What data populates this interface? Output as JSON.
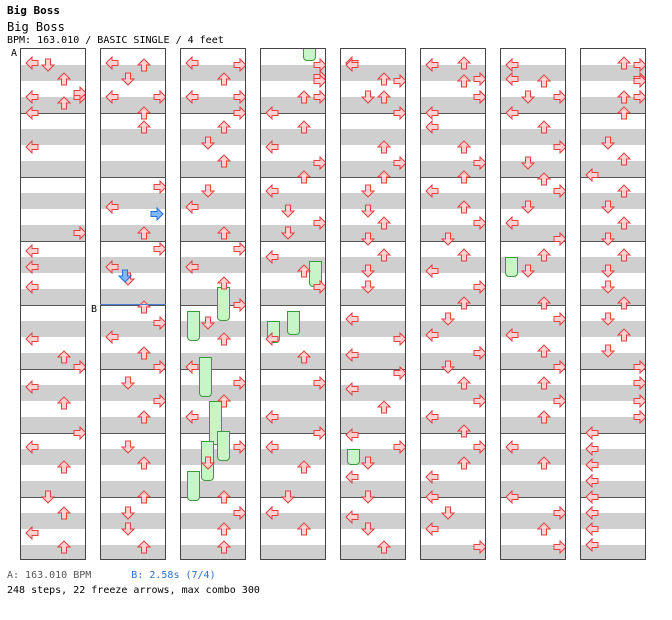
{
  "header": {
    "title": "Big Boss",
    "subtitle": "Big Boss",
    "info": "BPM: 163.010 / BASIC SINGLE / 4 feet"
  },
  "markers": {
    "a": "A",
    "b": "B"
  },
  "footer": {
    "bpm_a": "A: 163.010 BPM",
    "bpm_b": "B: 2.58s (7/4)",
    "stats": "248 steps, 22 freeze arrows, max combo 300"
  },
  "colors": {
    "normal_arrow": "#ffd0d0",
    "normal_arrow_stroke": "#e04040",
    "shock_arrow": "#7fb8ff",
    "freeze": "#c8f5c8",
    "stripe": "#cfcfcf"
  },
  "columns": [
    {
      "arrows": [
        [
          "L",
          6
        ],
        [
          "U",
          22
        ],
        [
          "R",
          40
        ],
        [
          "U",
          46
        ],
        [
          "L",
          56
        ],
        [
          "L",
          90
        ],
        [
          "R",
          176
        ],
        [
          "L",
          194
        ],
        [
          "L",
          210
        ],
        [
          "L",
          230
        ],
        [
          "L",
          282
        ],
        [
          "U",
          300
        ],
        [
          "R",
          310
        ],
        [
          "L",
          330
        ],
        [
          "U",
          346
        ],
        [
          "R",
          376
        ],
        [
          "L",
          390
        ],
        [
          "U",
          410
        ],
        [
          "D",
          440
        ],
        [
          "U",
          456
        ],
        [
          "L",
          476
        ],
        [
          "U",
          490
        ],
        [
          "D",
          520
        ],
        [
          "R",
          548
        ],
        [
          "L",
          552
        ]
      ],
      "holds": []
    },
    {
      "arrows": [
        [
          "L",
          6
        ],
        [
          "D",
          22
        ],
        [
          "L",
          40
        ],
        [
          "U",
          56
        ],
        [
          "U",
          70
        ],
        [
          "R",
          130
        ],
        [
          "L",
          150
        ],
        [
          "U",
          176
        ],
        [
          "R",
          192
        ],
        [
          "L",
          210
        ],
        [
          "D",
          222
        ],
        [
          "U",
          250
        ],
        [
          "R",
          266
        ],
        [
          "L",
          280
        ],
        [
          "U",
          296
        ],
        [
          "R",
          310
        ],
        [
          "D",
          326
        ],
        [
          "R",
          344
        ],
        [
          "U",
          360
        ],
        [
          "D",
          390
        ],
        [
          "U",
          406
        ],
        [
          "U",
          440
        ],
        [
          "D",
          456
        ],
        [
          "D",
          472
        ],
        [
          "U",
          490
        ],
        [
          "U",
          520
        ],
        [
          "R",
          552
        ]
      ],
      "holds": []
    },
    {
      "arrows": [
        [
          "L",
          6
        ],
        [
          "U",
          22
        ],
        [
          "L",
          40
        ],
        [
          "R",
          56
        ],
        [
          "U",
          70
        ],
        [
          "D",
          86
        ],
        [
          "U",
          104
        ],
        [
          "D",
          134
        ],
        [
          "L",
          150
        ],
        [
          "U",
          176
        ],
        [
          "R",
          192
        ],
        [
          "L",
          210
        ],
        [
          "U",
          226
        ],
        [
          "R",
          248
        ],
        [
          "D",
          266
        ],
        [
          "U",
          282
        ],
        [
          "L",
          310
        ],
        [
          "R",
          326
        ],
        [
          "U",
          344
        ],
        [
          "L",
          360
        ],
        [
          "R",
          390
        ],
        [
          "D",
          406
        ],
        [
          "U",
          440
        ],
        [
          "R",
          456
        ],
        [
          "U",
          472
        ],
        [
          "U",
          490
        ],
        [
          "R",
          520
        ],
        [
          "R",
          552
        ]
      ],
      "holds": [
        [
          6,
          310,
          30
        ],
        [
          36,
          286,
          34
        ],
        [
          18,
          356,
          40
        ],
        [
          28,
          400,
          44
        ],
        [
          6,
          470,
          30
        ],
        [
          20,
          440,
          40
        ],
        [
          36,
          430,
          30
        ]
      ]
    },
    {
      "arrows": [
        [
          "R",
          20
        ],
        [
          "U",
          40
        ],
        [
          "L",
          56
        ],
        [
          "U",
          70
        ],
        [
          "L",
          90
        ],
        [
          "R",
          106
        ],
        [
          "U",
          120
        ],
        [
          "L",
          134
        ],
        [
          "D",
          154
        ],
        [
          "R",
          166
        ],
        [
          "D",
          176
        ],
        [
          "L",
          200
        ],
        [
          "U",
          214
        ],
        [
          "R",
          230
        ],
        [
          "L",
          282
        ],
        [
          "U",
          300
        ],
        [
          "R",
          326
        ],
        [
          "L",
          360
        ],
        [
          "R",
          376
        ],
        [
          "L",
          390
        ],
        [
          "U",
          410
        ],
        [
          "D",
          440
        ],
        [
          "L",
          456
        ],
        [
          "U",
          472
        ],
        [
          "R",
          520
        ],
        [
          "R",
          536
        ],
        [
          "R",
          552
        ]
      ],
      "holds": [
        [
          42,
          46,
          14
        ],
        [
          26,
          310,
          24
        ],
        [
          48,
          260,
          26
        ],
        [
          6,
          320,
          22
        ]
      ]
    },
    {
      "arrows": [
        [
          "L",
          6
        ],
        [
          "U",
          22
        ],
        [
          "U",
          40
        ],
        [
          "R",
          56
        ],
        [
          "U",
          90
        ],
        [
          "R",
          106
        ],
        [
          "U",
          120
        ],
        [
          "D",
          134
        ],
        [
          "D",
          154
        ],
        [
          "U",
          166
        ],
        [
          "D",
          182
        ],
        [
          "U",
          198
        ],
        [
          "D",
          214
        ],
        [
          "D",
          230
        ],
        [
          "L",
          262
        ],
        [
          "R",
          282
        ],
        [
          "L",
          298
        ],
        [
          "R",
          316
        ],
        [
          "L",
          332
        ],
        [
          "U",
          350
        ],
        [
          "L",
          378
        ],
        [
          "R",
          390
        ],
        [
          "D",
          406
        ],
        [
          "L",
          420
        ],
        [
          "D",
          440
        ],
        [
          "L",
          460
        ],
        [
          "D",
          472
        ],
        [
          "U",
          490
        ],
        [
          "L",
          520
        ],
        [
          "R",
          536
        ],
        [
          "D",
          552
        ]
      ],
      "holds": [
        [
          6,
          448,
          16
        ]
      ]
    },
    {
      "arrows": [
        [
          "U",
          6
        ],
        [
          "R",
          22
        ],
        [
          "R",
          40
        ],
        [
          "L",
          56
        ],
        [
          "L",
          70
        ],
        [
          "U",
          90
        ],
        [
          "R",
          106
        ],
        [
          "U",
          120
        ],
        [
          "L",
          134
        ],
        [
          "U",
          150
        ],
        [
          "R",
          166
        ],
        [
          "D",
          182
        ],
        [
          "U",
          198
        ],
        [
          "L",
          214
        ],
        [
          "R",
          230
        ],
        [
          "U",
          246
        ],
        [
          "D",
          262
        ],
        [
          "L",
          278
        ],
        [
          "R",
          296
        ],
        [
          "D",
          310
        ],
        [
          "U",
          326
        ],
        [
          "R",
          344
        ],
        [
          "L",
          360
        ],
        [
          "U",
          374
        ],
        [
          "R",
          390
        ],
        [
          "U",
          406
        ],
        [
          "L",
          420
        ],
        [
          "L",
          440
        ],
        [
          "D",
          456
        ],
        [
          "L",
          472
        ],
        [
          "R",
          490
        ],
        [
          "L",
          520
        ],
        [
          "U",
          536
        ],
        [
          "R",
          552
        ]
      ],
      "holds": []
    },
    {
      "arrows": [
        [
          "L",
          22
        ],
        [
          "R",
          40
        ],
        [
          "L",
          56
        ],
        [
          "U",
          70
        ],
        [
          "R",
          90
        ],
        [
          "D",
          106
        ],
        [
          "U",
          122
        ],
        [
          "R",
          134
        ],
        [
          "D",
          150
        ],
        [
          "L",
          166
        ],
        [
          "R",
          182
        ],
        [
          "U",
          198
        ],
        [
          "D",
          214
        ],
        [
          "U",
          246
        ],
        [
          "R",
          262
        ],
        [
          "L",
          278
        ],
        [
          "U",
          294
        ],
        [
          "R",
          310
        ],
        [
          "U",
          326
        ],
        [
          "R",
          344
        ],
        [
          "U",
          360
        ],
        [
          "L",
          390
        ],
        [
          "U",
          406
        ],
        [
          "L",
          440
        ],
        [
          "R",
          456
        ],
        [
          "U",
          472
        ],
        [
          "R",
          490
        ],
        [
          "L",
          520
        ],
        [
          "U",
          536
        ],
        [
          "D",
          552
        ]
      ],
      "holds": [
        [
          4,
          256,
          20
        ]
      ]
    }
  ]
}
